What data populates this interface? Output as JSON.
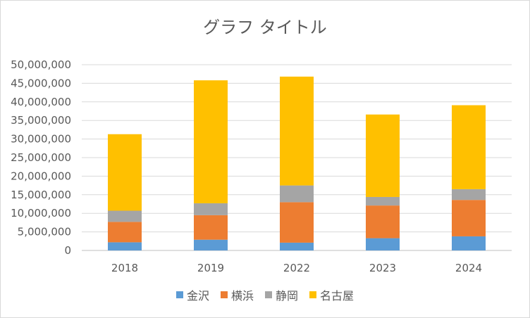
{
  "chart_data": {
    "type": "bar",
    "stacked": true,
    "title": "グラフ タイトル",
    "categories": [
      "2018",
      "2019",
      "2022",
      "2023",
      "2024"
    ],
    "series": [
      {
        "name": "金沢",
        "color": "#5b9bd5",
        "values": [
          2200000,
          2900000,
          2100000,
          3300000,
          3800000
        ]
      },
      {
        "name": "横浜",
        "color": "#ed7d31",
        "values": [
          5500000,
          6600000,
          10900000,
          8800000,
          9800000
        ]
      },
      {
        "name": "静岡",
        "color": "#a5a5a5",
        "values": [
          3000000,
          3200000,
          4500000,
          2300000,
          2900000
        ]
      },
      {
        "name": "名古屋",
        "color": "#ffc000",
        "values": [
          20600000,
          33100000,
          29300000,
          22200000,
          22600000
        ]
      }
    ],
    "ylim": [
      0,
      50000000
    ],
    "yticks": [
      "0",
      "5,000,000",
      "10,000,000",
      "15,000,000",
      "20,000,000",
      "25,000,000",
      "30,000,000",
      "35,000,000",
      "40,000,000",
      "45,000,000",
      "50,000,000"
    ],
    "grid": true,
    "legend_position": "bottom"
  }
}
